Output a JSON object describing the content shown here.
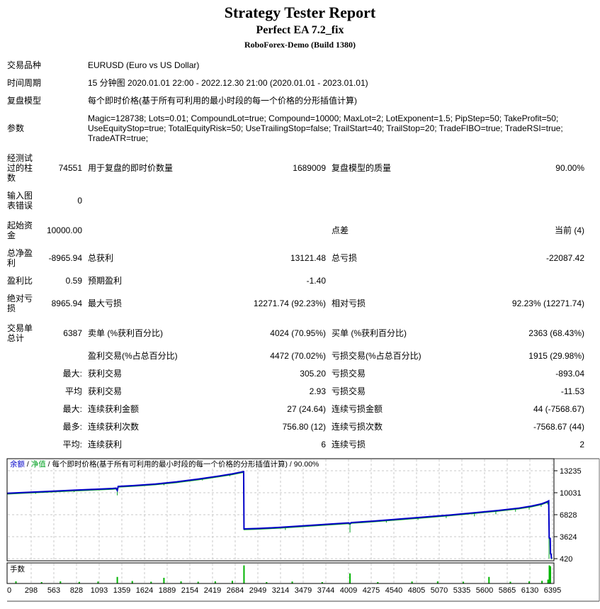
{
  "header": {
    "title": "Strategy Tester Report",
    "subtitle": "Perfect EA 7.2_fix",
    "build": "RoboForex-Demo (Build 1380)"
  },
  "table": {
    "rows": [
      {
        "info": true,
        "cells": [
          "交易品种",
          "EURUSD (Euro vs US Dollar)"
        ]
      },
      {
        "info": true,
        "cells": [
          "时间周期",
          "15 分钟图 2020.01.01 22:00 - 2022.12.30 21:00 (2020.01.01 - 2023.01.01)"
        ]
      },
      {
        "info": true,
        "cells": [
          "复盘模型",
          "每个即时价格(基于所有可利用的最小时段的每一个价格的分形插值计算)"
        ]
      },
      {
        "info": true,
        "cells": [
          "参数",
          "Magic=128738; Lots=0.01; CompoundLot=true; Compound=10000; MaxLot=2; LotExponent=1.5; PipStep=50; TakeProfit=50; UseEquityStop=true; TotalEquityRisk=50; UseTrailingStop=false; TrailStart=40; TrailStop=20; TradeFIBO=true; TradeRSI=true; TradeATR=true;"
        ]
      },
      {
        "gap": true,
        "cells": [
          "经测试过的柱数",
          "74551",
          "用于复盘的即时价数量",
          "1689009",
          "复盘模型的质量",
          "90.00%"
        ]
      },
      {
        "cells": [
          "输入图表错误",
          "0",
          "",
          "",
          "",
          ""
        ]
      },
      {
        "gap": true,
        "cells": [
          "起始资金",
          "10000.00",
          "",
          "",
          "点差",
          "当前 (4)"
        ]
      },
      {
        "cells": [
          "总净盈利",
          "-8965.94",
          "总获利",
          "13121.48",
          "总亏损",
          "-22087.42"
        ]
      },
      {
        "cells": [
          "盈利比",
          "0.59",
          "预期盈利",
          "-1.40",
          "",
          ""
        ]
      },
      {
        "cells": [
          "绝对亏损",
          "8965.94",
          "最大亏损",
          "12271.74 (92.23%)",
          "相对亏损",
          "92.23% (12271.74)"
        ]
      },
      {
        "gap": true,
        "cells": [
          "交易单总计",
          "6387",
          "卖单 (%获利百分比)",
          "4024 (70.95%)",
          "买单 (%获利百分比)",
          "2363 (68.43%)"
        ]
      },
      {
        "cells": [
          "",
          "",
          "盈利交易(%占总百分比)",
          "4472 (70.02%)",
          "亏损交易(%占总百分比)",
          "1915 (29.98%)"
        ]
      },
      {
        "cells": [
          "",
          "最大:",
          "获利交易",
          "305.20",
          "亏损交易",
          "-893.04"
        ]
      },
      {
        "cells": [
          "",
          "平均",
          "获利交易",
          "2.93",
          "亏损交易",
          "-11.53"
        ]
      },
      {
        "cells": [
          "",
          "最大:",
          "连续获利金额",
          "27 (24.64)",
          "连续亏损金额",
          "44 (-7568.67)"
        ]
      },
      {
        "cells": [
          "",
          "最多:",
          "连续获利次数",
          "756.80 (12)",
          "连续亏损次数",
          "-7568.67 (44)"
        ]
      },
      {
        "cells": [
          "",
          "平均:",
          "连续获利",
          "6",
          "连续亏损",
          "2"
        ]
      }
    ]
  },
  "chart_data": {
    "type": "line",
    "legend": [
      {
        "text": "余额",
        "color": "#0000C8"
      },
      {
        "text": " / ",
        "color": "#000000"
      },
      {
        "text": "净值",
        "color": "#00A020"
      },
      {
        "text": " / 每个即时价格(基于所有可利用的最小时段的每一个价格的分形插值计算) / 90.00%",
        "color": "#000000"
      }
    ],
    "sub_label": "手数",
    "balance_color": "#0000C8",
    "equity_color": "#00A020",
    "lots_color": "#00B400",
    "grid_color": "#C9C9C9",
    "y_ticks": [
      13235,
      10031,
      6828,
      3624,
      420
    ],
    "x_ticks": [
      0,
      298,
      563,
      828,
      1093,
      1359,
      1624,
      1889,
      2154,
      2419,
      2684,
      2949,
      3214,
      3479,
      3744,
      4009,
      4275,
      4540,
      4805,
      5070,
      5335,
      5600,
      5865,
      6130,
      6395
    ],
    "y_range": [
      420,
      13235
    ],
    "balance": [
      [
        0,
        9950
      ],
      [
        200,
        10060
      ],
      [
        500,
        10230
      ],
      [
        800,
        10400
      ],
      [
        1050,
        10540
      ],
      [
        1250,
        10650
      ],
      [
        1290,
        10700
      ],
      [
        1305,
        10380
      ],
      [
        1315,
        10950
      ],
      [
        1500,
        11080
      ],
      [
        1750,
        11300
      ],
      [
        2000,
        11620
      ],
      [
        2250,
        12020
      ],
      [
        2500,
        12480
      ],
      [
        2650,
        12780
      ],
      [
        2760,
        13060
      ],
      [
        2782,
        13100
      ],
      [
        2786,
        4760
      ],
      [
        2950,
        4820
      ],
      [
        3200,
        4980
      ],
      [
        3500,
        5220
      ],
      [
        3800,
        5470
      ],
      [
        4010,
        5640
      ],
      [
        4025,
        5520
      ],
      [
        4040,
        5680
      ],
      [
        4300,
        5900
      ],
      [
        4600,
        6190
      ],
      [
        4900,
        6490
      ],
      [
        5200,
        6790
      ],
      [
        5500,
        7140
      ],
      [
        5750,
        7440
      ],
      [
        6000,
        7790
      ],
      [
        6150,
        8090
      ],
      [
        6270,
        8430
      ],
      [
        6330,
        8720
      ],
      [
        6348,
        8850
      ],
      [
        6354,
        3450
      ],
      [
        6366,
        3380
      ],
      [
        6369,
        1150
      ],
      [
        6376,
        1100
      ],
      [
        6380,
        430
      ]
    ],
    "equity_spikes": [
      [
        350,
        10150,
        9870
      ],
      [
        800,
        10400,
        10120
      ],
      [
        1305,
        10700,
        9650
      ],
      [
        1850,
        11400,
        11120
      ],
      [
        2300,
        12100,
        11820
      ],
      [
        2620,
        12720,
        12430
      ],
      [
        3270,
        5030,
        4600
      ],
      [
        4025,
        5640,
        4230
      ],
      [
        4450,
        6050,
        5680
      ],
      [
        4820,
        6420,
        6060
      ],
      [
        5150,
        6760,
        6330
      ],
      [
        5480,
        7120,
        6590
      ],
      [
        5730,
        7420,
        6890
      ],
      [
        5960,
        7750,
        7260
      ],
      [
        6120,
        8030,
        7560
      ],
      [
        6260,
        8400,
        7980
      ],
      [
        6335,
        8740,
        8330
      ],
      [
        6352,
        8850,
        430
      ]
    ],
    "lots": [
      [
        120,
        0.1
      ],
      [
        420,
        0.06
      ],
      [
        640,
        0.1
      ],
      [
        860,
        0.07
      ],
      [
        1080,
        0.09
      ],
      [
        1305,
        0.35
      ],
      [
        1480,
        0.12
      ],
      [
        1700,
        0.08
      ],
      [
        1850,
        0.3
      ],
      [
        2050,
        0.1
      ],
      [
        2250,
        0.08
      ],
      [
        2450,
        0.1
      ],
      [
        2650,
        0.13
      ],
      [
        2786,
        1.0
      ],
      [
        3050,
        0.06
      ],
      [
        3350,
        0.09
      ],
      [
        3700,
        0.06
      ],
      [
        4025,
        0.55
      ],
      [
        4350,
        0.06
      ],
      [
        4750,
        0.09
      ],
      [
        5050,
        0.1
      ],
      [
        5350,
        0.08
      ],
      [
        5650,
        0.35
      ],
      [
        5900,
        0.08
      ],
      [
        6120,
        0.1
      ],
      [
        6270,
        0.13
      ],
      [
        6340,
        0.2
      ],
      [
        6356,
        1.0
      ],
      [
        6368,
        0.95
      ]
    ]
  }
}
